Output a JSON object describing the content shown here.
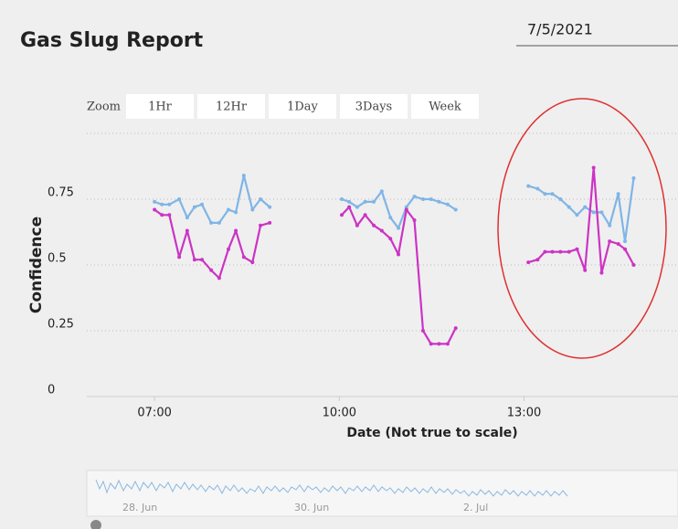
{
  "header": {
    "title": "Gas Slug Report",
    "date": "7/5/2021"
  },
  "zoom": {
    "label": "Zoom",
    "buttons": [
      "1Hr",
      "12Hr",
      "1Day",
      "3Days",
      "Week"
    ]
  },
  "chart_data": {
    "type": "line",
    "xlabel": "Date (Not true to scale)",
    "ylabel": "Confidence",
    "x": [
      7.0,
      7.12,
      7.24,
      7.4,
      7.53,
      7.65,
      7.77,
      7.92,
      8.05,
      8.2,
      8.32,
      8.45,
      8.59,
      8.72,
      8.87,
      9.4,
      10.04,
      10.16,
      10.29,
      10.42,
      10.56,
      10.69,
      10.83,
      10.96,
      11.09,
      11.22,
      11.36,
      11.49,
      11.62,
      11.76,
      11.89,
      12.4,
      13.07,
      13.22,
      13.34,
      13.46,
      13.59,
      13.73,
      13.86,
      13.99,
      14.13,
      14.26,
      14.39,
      14.53,
      14.64,
      14.78
    ],
    "series": [
      {
        "color": "#7fb5e6",
        "values": [
          0.74,
          0.73,
          0.73,
          0.75,
          0.68,
          0.72,
          0.73,
          0.66,
          0.66,
          0.71,
          0.7,
          0.84,
          0.71,
          0.75,
          0.72,
          null,
          0.75,
          0.74,
          0.72,
          0.74,
          0.74,
          0.78,
          0.68,
          0.64,
          0.72,
          0.76,
          0.75,
          0.75,
          0.74,
          0.73,
          0.71,
          null,
          0.8,
          0.79,
          0.77,
          0.77,
          0.75,
          0.72,
          0.69,
          0.72,
          0.7,
          0.7,
          0.65,
          0.77,
          0.59,
          0.83
        ]
      },
      {
        "color": "#cc33c4",
        "values": [
          0.71,
          0.69,
          0.69,
          0.53,
          0.63,
          0.52,
          0.52,
          0.48,
          0.45,
          0.56,
          0.63,
          0.53,
          0.51,
          0.65,
          0.66,
          null,
          0.69,
          0.72,
          0.65,
          0.69,
          0.65,
          0.63,
          0.6,
          0.54,
          0.71,
          0.67,
          0.25,
          0.2,
          0.2,
          0.2,
          0.26,
          null,
          0.51,
          0.52,
          0.55,
          0.55,
          0.55,
          0.55,
          0.56,
          0.48,
          0.87,
          0.47,
          0.59,
          0.58,
          0.56,
          0.5
        ]
      }
    ],
    "xlim": [
      5.9,
      15.5
    ],
    "xticks": [
      {
        "value": 7,
        "label": "07:00"
      },
      {
        "value": 10,
        "label": "10:00"
      },
      {
        "value": 13,
        "label": "13:00"
      }
    ],
    "ylim": [
      0,
      1
    ],
    "yticks": [
      0,
      0.25,
      0.5,
      0.75
    ],
    "grid": true
  },
  "navigator": {
    "labels": [
      "28. Jun",
      "30. Jun",
      "2. Jul"
    ]
  }
}
